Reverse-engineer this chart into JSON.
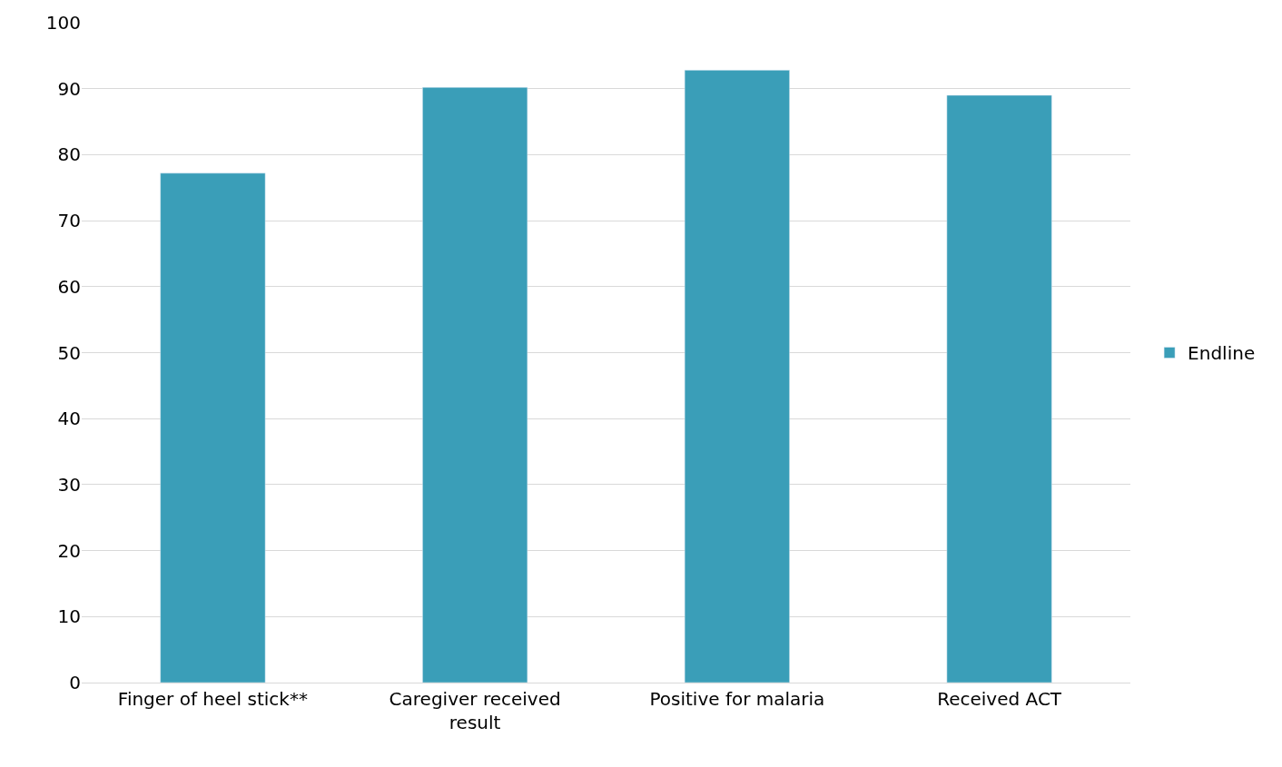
{
  "chart_data": {
    "type": "bar",
    "categories": [
      "Finger of heel stick**",
      "Caregiver received result",
      "Positive for malaria",
      "Received ACT"
    ],
    "series": [
      {
        "name": "Endline",
        "color": "#3a9eb8",
        "values": [
          77.2,
          90.2,
          92.8,
          89.0
        ]
      }
    ],
    "ylim": [
      0,
      100
    ],
    "yticks": [
      0,
      10,
      20,
      30,
      40,
      50,
      60,
      70,
      80,
      90,
      100
    ],
    "grid": "y",
    "legend": "right"
  }
}
